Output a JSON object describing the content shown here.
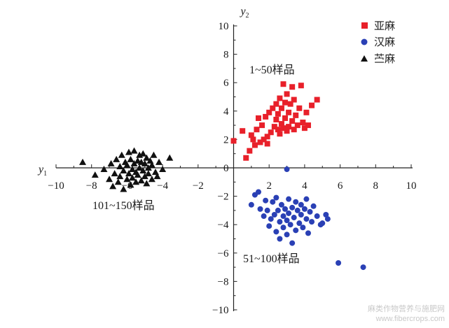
{
  "chart_data": {
    "type": "scatter",
    "xaxis": {
      "label": "y",
      "label_subscript": "1",
      "range": [
        -10,
        10
      ],
      "ticks": [
        "−10",
        "−8",
        "−6",
        "−4",
        "−2",
        "0",
        "2",
        "4",
        "6",
        "8",
        "10"
      ]
    },
    "yaxis": {
      "label": "y",
      "label_subscript": "2",
      "range": [
        -10,
        10
      ],
      "ticks": [
        "−10",
        "−8",
        "−6",
        "−4",
        "−2",
        "0",
        "2",
        "4",
        "6",
        "8",
        "10"
      ]
    },
    "grid": false,
    "legend_position": "top-right",
    "annotations": [
      "1~50样品",
      "51~100样品",
      "101~150样品"
    ],
    "series": [
      {
        "name": "亚麻",
        "marker": "square",
        "color": "#e8202a",
        "points": [
          [
            0.0,
            1.9
          ],
          [
            0.5,
            2.6
          ],
          [
            0.7,
            0.7
          ],
          [
            0.9,
            1.2
          ],
          [
            1.0,
            2.3
          ],
          [
            1.1,
            2.0
          ],
          [
            1.2,
            1.6
          ],
          [
            1.3,
            2.7
          ],
          [
            1.4,
            3.5
          ],
          [
            1.5,
            1.8
          ],
          [
            1.6,
            3.0
          ],
          [
            1.7,
            2.0
          ],
          [
            1.8,
            3.6
          ],
          [
            1.9,
            2.2
          ],
          [
            1.9,
            1.7
          ],
          [
            2.0,
            3.9
          ],
          [
            2.1,
            2.5
          ],
          [
            2.2,
            4.2
          ],
          [
            2.3,
            2.9
          ],
          [
            2.4,
            3.4
          ],
          [
            2.4,
            4.5
          ],
          [
            2.5,
            2.7
          ],
          [
            2.5,
            3.8
          ],
          [
            2.6,
            2.4
          ],
          [
            2.6,
            4.9
          ],
          [
            2.7,
            3.1
          ],
          [
            2.7,
            4.2
          ],
          [
            2.8,
            2.8
          ],
          [
            2.8,
            5.9
          ],
          [
            2.9,
            3.5
          ],
          [
            2.9,
            4.6
          ],
          [
            3.0,
            2.6
          ],
          [
            3.0,
            5.2
          ],
          [
            3.1,
            3.9
          ],
          [
            3.1,
            2.9
          ],
          [
            3.2,
            4.5
          ],
          [
            3.3,
            3.3
          ],
          [
            3.3,
            5.7
          ],
          [
            3.4,
            2.7
          ],
          [
            3.4,
            4.8
          ],
          [
            3.5,
            3.7
          ],
          [
            3.6,
            3.0
          ],
          [
            3.7,
            4.2
          ],
          [
            3.8,
            5.8
          ],
          [
            3.9,
            3.2
          ],
          [
            4.0,
            2.8
          ],
          [
            4.1,
            3.9
          ],
          [
            4.2,
            3.0
          ],
          [
            4.4,
            4.4
          ],
          [
            4.7,
            4.8
          ]
        ]
      },
      {
        "name": "汉麻",
        "marker": "circle",
        "color": "#2a40b5",
        "points": [
          [
            1.0,
            -2.6
          ],
          [
            1.2,
            -1.9
          ],
          [
            1.4,
            -1.7
          ],
          [
            1.5,
            -2.9
          ],
          [
            1.7,
            -3.4
          ],
          [
            1.8,
            -2.3
          ],
          [
            1.9,
            -3.0
          ],
          [
            2.0,
            -4.1
          ],
          [
            2.1,
            -3.6
          ],
          [
            2.2,
            -2.4
          ],
          [
            2.3,
            -3.3
          ],
          [
            2.4,
            -4.5
          ],
          [
            2.4,
            -2.1
          ],
          [
            2.5,
            -3.0
          ],
          [
            2.6,
            -3.8
          ],
          [
            2.6,
            -5.0
          ],
          [
            2.7,
            -2.6
          ],
          [
            2.8,
            -3.4
          ],
          [
            2.8,
            -4.2
          ],
          [
            2.9,
            -2.9
          ],
          [
            3.0,
            -3.7
          ],
          [
            3.0,
            -4.7
          ],
          [
            3.1,
            -2.2
          ],
          [
            3.1,
            -3.2
          ],
          [
            3.2,
            -4.0
          ],
          [
            3.3,
            -2.8
          ],
          [
            3.3,
            -5.3
          ],
          [
            3.4,
            -3.5
          ],
          [
            3.5,
            -2.4
          ],
          [
            3.5,
            -4.4
          ],
          [
            3.6,
            -3.0
          ],
          [
            3.7,
            -3.9
          ],
          [
            3.8,
            -2.6
          ],
          [
            3.8,
            -3.3
          ],
          [
            3.9,
            -4.2
          ],
          [
            4.0,
            -2.9
          ],
          [
            4.1,
            -3.6
          ],
          [
            4.1,
            -2.2
          ],
          [
            4.2,
            -4.6
          ],
          [
            4.3,
            -3.1
          ],
          [
            4.4,
            -3.8
          ],
          [
            4.5,
            -2.7
          ],
          [
            4.7,
            -3.4
          ],
          [
            4.9,
            -4.0
          ],
          [
            5.0,
            -3.9
          ],
          [
            5.2,
            -3.3
          ],
          [
            5.3,
            -3.6
          ],
          [
            5.9,
            -6.7
          ],
          [
            7.3,
            -7.0
          ],
          [
            3.0,
            -0.1
          ]
        ]
      },
      {
        "name": "苎麻",
        "marker": "triangle",
        "color": "#111111",
        "points": [
          [
            -8.5,
            0.4
          ],
          [
            -7.8,
            -0.5
          ],
          [
            -7.3,
            -0.1
          ],
          [
            -7.0,
            -0.8
          ],
          [
            -6.9,
            0.3
          ],
          [
            -6.8,
            -1.3
          ],
          [
            -6.7,
            -0.4
          ],
          [
            -6.6,
            0.6
          ],
          [
            -6.5,
            -1.0
          ],
          [
            -6.4,
            0.1
          ],
          [
            -6.4,
            -0.6
          ],
          [
            -6.3,
            0.9
          ],
          [
            -6.2,
            -0.2
          ],
          [
            -6.2,
            -1.5
          ],
          [
            -6.1,
            0.4
          ],
          [
            -6.0,
            -0.8
          ],
          [
            -6.0,
            0.2
          ],
          [
            -5.9,
            1.1
          ],
          [
            -5.9,
            -0.4
          ],
          [
            -5.8,
            -1.2
          ],
          [
            -5.8,
            0.6
          ],
          [
            -5.7,
            -0.1
          ],
          [
            -5.7,
            -0.7
          ],
          [
            -5.6,
            0.3
          ],
          [
            -5.6,
            1.2
          ],
          [
            -5.5,
            -0.3
          ],
          [
            -5.5,
            -1.0
          ],
          [
            -5.4,
            0.5
          ],
          [
            -5.4,
            -0.5
          ],
          [
            -5.3,
            0.9
          ],
          [
            -5.3,
            0.0
          ],
          [
            -5.2,
            -0.9
          ],
          [
            -5.2,
            0.4
          ],
          [
            -5.1,
            -0.2
          ],
          [
            -5.1,
            1.0
          ],
          [
            -5.0,
            -0.6
          ],
          [
            -5.0,
            0.3
          ],
          [
            -4.9,
            -1.1
          ],
          [
            -4.9,
            0.7
          ],
          [
            -4.8,
            0.0
          ],
          [
            -4.8,
            -0.4
          ],
          [
            -4.7,
            0.5
          ],
          [
            -4.6,
            -0.8
          ],
          [
            -4.6,
            0.2
          ],
          [
            -4.5,
            0.9
          ],
          [
            -4.4,
            -0.3
          ],
          [
            -4.3,
            -0.6
          ],
          [
            -4.2,
            0.4
          ],
          [
            -4.0,
            -0.1
          ],
          [
            -3.6,
            0.7
          ]
        ]
      }
    ]
  },
  "watermark": {
    "line1": "麻类作物营养与施肥网",
    "line2": "www.fibercrops.com"
  }
}
